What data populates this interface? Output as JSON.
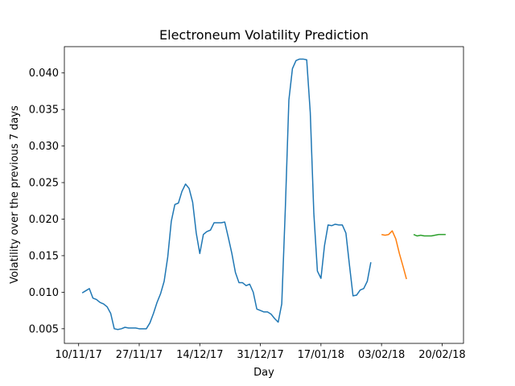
{
  "chart_data": {
    "type": "line",
    "title": "Electroneum Volatility Prediction",
    "xlabel": "Day",
    "ylabel": "Volatility over the previous 7 days",
    "xlim": [
      "2017-11-06",
      "2018-02-26"
    ],
    "ylim": [
      0.003,
      0.0436
    ],
    "xticks": [
      {
        "value": "2017-11-10",
        "label": "10/11/17"
      },
      {
        "value": "2017-11-27",
        "label": "27/11/17"
      },
      {
        "value": "2017-12-14",
        "label": "14/12/17"
      },
      {
        "value": "2017-12-31",
        "label": "31/12/17"
      },
      {
        "value": "2018-01-17",
        "label": "17/01/18"
      },
      {
        "value": "2018-02-03",
        "label": "03/02/18"
      },
      {
        "value": "2018-02-20",
        "label": "20/02/18"
      }
    ],
    "yticks": [
      0.005,
      {
        "value": 0.01,
        "label": "0.010"
      },
      0.015,
      {
        "value": 0.02,
        "label": "0.020"
      },
      0.025,
      {
        "value": 0.03,
        "label": "0.030"
      },
      0.035,
      {
        "value": 0.04,
        "label": "0.040"
      }
    ],
    "series": [
      {
        "color": "#1f77b4",
        "x": [
          "2017-11-11",
          "2017-11-12",
          "2017-11-13",
          "2017-11-14",
          "2017-11-15",
          "2017-11-16",
          "2017-11-17",
          "2017-11-18",
          "2017-11-19",
          "2017-11-20",
          "2017-11-21",
          "2017-11-22",
          "2017-11-23",
          "2017-11-24",
          "2017-11-25",
          "2017-11-26",
          "2017-11-27",
          "2017-11-28",
          "2017-11-29",
          "2017-11-30",
          "2017-12-01",
          "2017-12-02",
          "2017-12-03",
          "2017-12-04",
          "2017-12-05",
          "2017-12-06",
          "2017-12-07",
          "2017-12-08",
          "2017-12-09",
          "2017-12-10",
          "2017-12-11",
          "2017-12-12",
          "2017-12-13",
          "2017-12-14",
          "2017-12-15",
          "2017-12-16",
          "2017-12-17",
          "2017-12-18",
          "2017-12-19",
          "2017-12-20",
          "2017-12-21",
          "2017-12-22",
          "2017-12-23",
          "2017-12-24",
          "2017-12-25",
          "2017-12-26",
          "2017-12-27",
          "2017-12-28",
          "2017-12-29",
          "2017-12-30",
          "2017-12-31",
          "2018-01-01",
          "2018-01-02",
          "2018-01-03",
          "2018-01-04",
          "2018-01-05",
          "2018-01-06",
          "2018-01-07",
          "2018-01-08",
          "2018-01-09",
          "2018-01-10",
          "2018-01-11",
          "2018-01-12",
          "2018-01-13",
          "2018-01-14",
          "2018-01-15",
          "2018-01-16",
          "2018-01-17",
          "2018-01-18",
          "2018-01-19",
          "2018-01-20",
          "2018-01-21",
          "2018-01-22",
          "2018-01-23",
          "2018-01-24",
          "2018-01-25",
          "2018-01-26",
          "2018-01-27",
          "2018-01-28",
          "2018-01-29",
          "2018-01-30",
          "2018-01-31"
        ],
        "values": [
          0.0099,
          0.0102,
          0.0105,
          0.0092,
          0.009,
          0.0086,
          0.0084,
          0.008,
          0.0071,
          0.005,
          0.0049,
          0.005,
          0.0052,
          0.0051,
          0.0051,
          0.0051,
          0.005,
          0.005,
          0.005,
          0.0058,
          0.0071,
          0.0086,
          0.0098,
          0.0115,
          0.0148,
          0.0197,
          0.022,
          0.0222,
          0.0238,
          0.0248,
          0.0242,
          0.0223,
          0.0181,
          0.0153,
          0.0179,
          0.0183,
          0.0185,
          0.0195,
          0.0195,
          0.0195,
          0.0196,
          0.0175,
          0.0153,
          0.0127,
          0.0113,
          0.0113,
          0.0109,
          0.0111,
          0.01,
          0.0077,
          0.0075,
          0.0073,
          0.0073,
          0.007,
          0.0064,
          0.0059,
          0.0084,
          0.0214,
          0.0363,
          0.0406,
          0.0417,
          0.0419,
          0.0419,
          0.0418,
          0.0346,
          0.0208,
          0.0129,
          0.0119,
          0.0164,
          0.0192,
          0.0191,
          0.0193,
          0.0192,
          0.0192,
          0.0181,
          0.0137,
          0.0095,
          0.0096,
          0.0103,
          0.0105,
          0.0115,
          0.0141
        ]
      },
      {
        "color": "#ff7f0e",
        "x": [
          "2018-02-03",
          "2018-02-04",
          "2018-02-05",
          "2018-02-06",
          "2018-02-07",
          "2018-02-08",
          "2018-02-09",
          "2018-02-10"
        ],
        "values": [
          0.0179,
          0.0178,
          0.0179,
          0.0184,
          0.0173,
          0.0153,
          0.0136,
          0.0118
        ]
      },
      {
        "color": "#2ca02c",
        "x": [
          "2018-02-12",
          "2018-02-13",
          "2018-02-14",
          "2018-02-15",
          "2018-02-16",
          "2018-02-17",
          "2018-02-18",
          "2018-02-19",
          "2018-02-20",
          "2018-02-21"
        ],
        "values": [
          0.0179,
          0.0177,
          0.0178,
          0.0177,
          0.0177,
          0.0177,
          0.0178,
          0.0179,
          0.0179,
          0.0179
        ]
      }
    ]
  }
}
